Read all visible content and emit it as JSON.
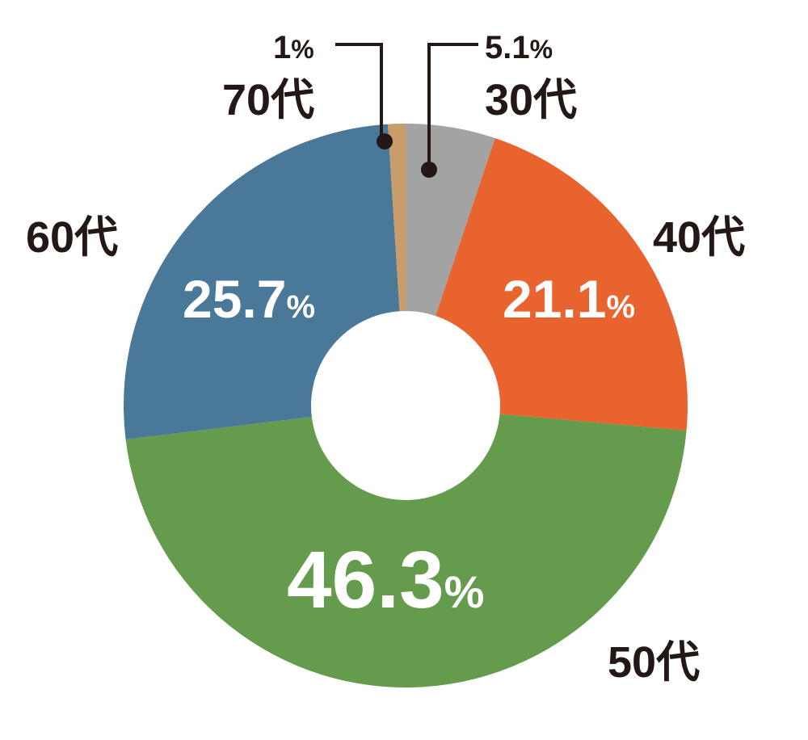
{
  "chart_data": {
    "type": "pie",
    "donut": true,
    "start": "top",
    "direction": "clockwise",
    "slices": [
      {
        "category": "30代",
        "value": 5.1,
        "label": "5.1",
        "unit": "%",
        "color": "#a3a3a3"
      },
      {
        "category": "40代",
        "value": 21.1,
        "label": "21.1",
        "unit": "%",
        "color": "#e8632e"
      },
      {
        "category": "50代",
        "value": 46.3,
        "label": "46.3",
        "unit": "%",
        "color": "#659b4c"
      },
      {
        "category": "60代",
        "value": 25.7,
        "label": "25.7",
        "unit": "%",
        "color": "#4a7899"
      },
      {
        "category": "70代",
        "value": 1,
        "label": "1",
        "unit": "%",
        "color": "#c99c6b"
      }
    ]
  }
}
